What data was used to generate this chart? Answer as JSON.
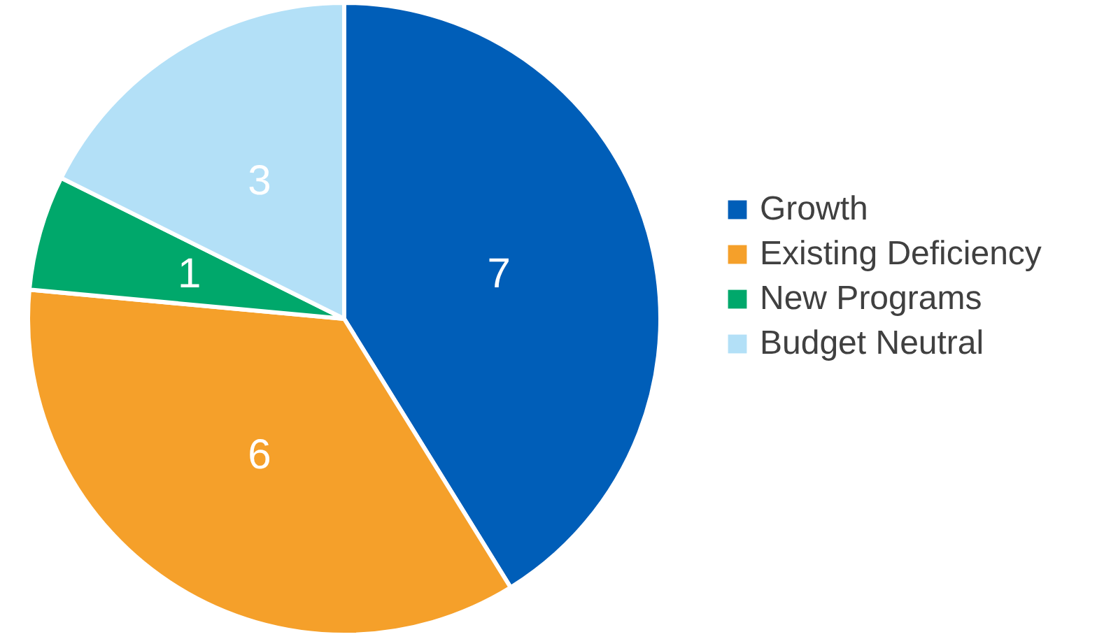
{
  "chart_data": {
    "type": "pie",
    "categories": [
      "Growth",
      "Existing Deficiency",
      "New Programs",
      "Budget Neutral"
    ],
    "values": [
      7,
      6,
      1,
      3
    ],
    "colors": [
      "#005eb8",
      "#f5a02a",
      "#00a86b",
      "#b3e0f7"
    ],
    "data_labels": true,
    "legend": "right"
  }
}
